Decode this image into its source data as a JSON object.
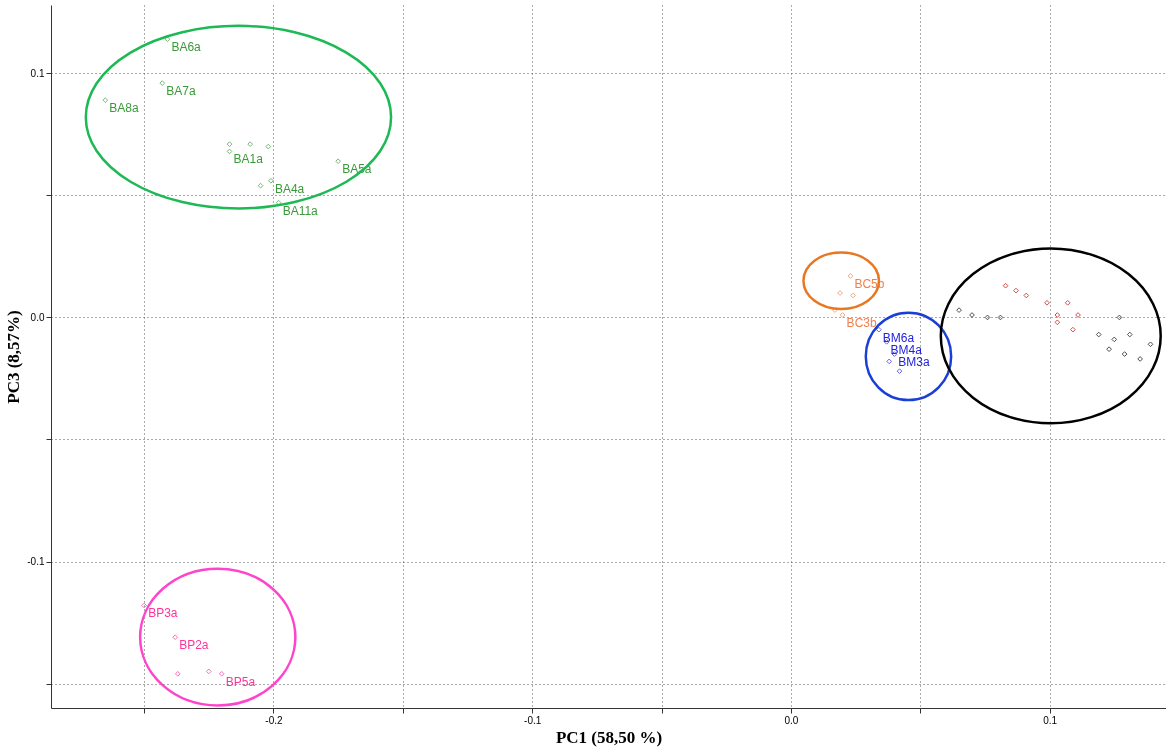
{
  "chart_data": {
    "type": "scatter",
    "xlabel": "PC1 (58,50 %)",
    "ylabel": "PC3 (8,57%)",
    "marker": "diamond",
    "grid": true,
    "legend": false,
    "xlim": [
      -0.286,
      0.145
    ],
    "ylim": [
      -0.16,
      0.128
    ],
    "xticks": [
      {
        "value": -0.25,
        "label": null
      },
      {
        "value": -0.2,
        "label": "-0.2"
      },
      {
        "value": -0.15,
        "label": null
      },
      {
        "value": -0.1,
        "label": "-0.1"
      },
      {
        "value": -0.05,
        "label": null
      },
      {
        "value": 0,
        "label": "0.0"
      },
      {
        "value": 0.05,
        "label": null
      },
      {
        "value": 0.1,
        "label": "0.1"
      }
    ],
    "yticks": [
      {
        "value": -0.15,
        "label": null
      },
      {
        "value": -0.1,
        "label": "-0.1"
      },
      {
        "value": -0.05,
        "label": null
      },
      {
        "value": 0,
        "label": "0.0"
      },
      {
        "value": 0.05,
        "label": null
      },
      {
        "value": 0.1,
        "label": "0.1"
      }
    ],
    "series": [
      {
        "color": "#3a9a3a",
        "x": [
          -0.241,
          -0.243,
          -0.265,
          -0.217,
          -0.217,
          -0.209,
          -0.202,
          -0.205,
          -0.201,
          -0.175,
          -0.198
        ],
        "values": [
          0.114,
          0.096,
          0.089,
          0.071,
          0.068,
          0.071,
          0.07,
          0.054,
          0.056,
          0.064,
          0.047
        ],
        "value_labels": [
          "BA6a",
          "BA7a",
          "BA8a",
          null,
          "BA1a",
          null,
          null,
          null,
          "BA4a",
          "BA5a",
          "BA11a"
        ]
      },
      {
        "color": "#ff3399",
        "x": [
          -0.25,
          -0.238,
          -0.237,
          -0.225,
          -0.22
        ],
        "values": [
          -0.118,
          -0.131,
          -0.146,
          -0.145,
          -0.146
        ],
        "value_labels": [
          "BP3a",
          "BP2a",
          null,
          null,
          "BP5a"
        ]
      },
      {
        "color": "#f08050",
        "x": [
          0.023,
          0.019,
          0.024,
          0.017,
          0.02
        ],
        "values": [
          0.017,
          0.01,
          0.009,
          0.003,
          0.001
        ],
        "value_labels": [
          "BC5b",
          null,
          null,
          null,
          "BC3b"
        ]
      },
      {
        "color": "#2222dd",
        "x": [
          0.034,
          0.037,
          0.038,
          0.04,
          0.042
        ],
        "values": [
          -0.005,
          -0.01,
          -0.018,
          -0.015,
          -0.022
        ],
        "value_labels": [
          "BM6a",
          "BM4a",
          null,
          "BM3a",
          null
        ]
      },
      {
        "color": "#c00000",
        "x": [
          0.083,
          0.087,
          0.091,
          0.099,
          0.107,
          0.103,
          0.111,
          0.103,
          0.109
        ],
        "values": [
          0.013,
          0.011,
          0.009,
          0.006,
          0.006,
          0.001,
          0.001,
          -0.002,
          -0.005
        ],
        "value_labels": [
          null,
          null,
          null,
          null,
          null,
          null,
          null,
          null,
          null
        ]
      },
      {
        "color": "#000000",
        "x": [
          0.065,
          0.07,
          0.076,
          0.081,
          0.127,
          0.119,
          0.125,
          0.131,
          0.123,
          0.129,
          0.135,
          0.139
        ],
        "values": [
          0.003,
          0.001,
          0,
          0,
          0,
          -0.007,
          -0.009,
          -0.007,
          -0.013,
          -0.015,
          -0.017,
          -0.011
        ],
        "value_labels": [
          null,
          null,
          null,
          null,
          null,
          null,
          null,
          null,
          null,
          null,
          null,
          null
        ]
      }
    ]
  }
}
